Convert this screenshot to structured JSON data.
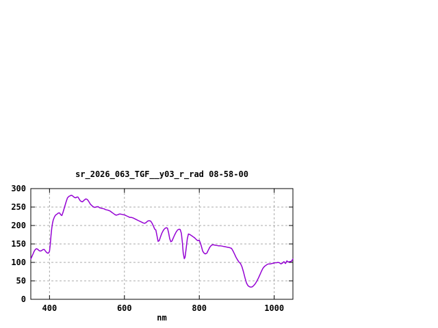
{
  "window": {
    "background_color": "#ffffff"
  },
  "chart_data": {
    "type": "line",
    "title": "sr_2026_063_TGF__y03_r_rad 08-58-00",
    "xlabel": "nm",
    "ylabel": "",
    "xlim": [
      350,
      1050
    ],
    "ylim": [
      0,
      300
    ],
    "xticks": [
      400,
      600,
      800,
      1000
    ],
    "yticks": [
      0,
      50,
      100,
      150,
      200,
      250,
      300
    ],
    "grid": "dashed major gridlines on",
    "legend_position": "none",
    "line_color": "#9400D3",
    "grid_color": "#a8a8a8",
    "frame_color": "#000000",
    "series": [
      {
        "points": [
          [
            350,
            109
          ],
          [
            353,
            116
          ],
          [
            356,
            123
          ],
          [
            359,
            130
          ],
          [
            362,
            135
          ],
          [
            365,
            137
          ],
          [
            368,
            136
          ],
          [
            371,
            133
          ],
          [
            374,
            131
          ],
          [
            377,
            131
          ],
          [
            380,
            133
          ],
          [
            383,
            135
          ],
          [
            386,
            135
          ],
          [
            389,
            131
          ],
          [
            392,
            127
          ],
          [
            395,
            125
          ],
          [
            398,
            126
          ],
          [
            400,
            131
          ],
          [
            402,
            150
          ],
          [
            404,
            172
          ],
          [
            406,
            192
          ],
          [
            408,
            206
          ],
          [
            410,
            215
          ],
          [
            413,
            223
          ],
          [
            416,
            228
          ],
          [
            420,
            231
          ],
          [
            424,
            234
          ],
          [
            427,
            234
          ],
          [
            430,
            229
          ],
          [
            433,
            227
          ],
          [
            436,
            236
          ],
          [
            440,
            249
          ],
          [
            444,
            263
          ],
          [
            448,
            275
          ],
          [
            452,
            279
          ],
          [
            456,
            281
          ],
          [
            458,
            282
          ],
          [
            461,
            281
          ],
          [
            464,
            278
          ],
          [
            467,
            276
          ],
          [
            470,
            275
          ],
          [
            473,
            277
          ],
          [
            476,
            277
          ],
          [
            479,
            272
          ],
          [
            482,
            267
          ],
          [
            485,
            265
          ],
          [
            488,
            264
          ],
          [
            491,
            267
          ],
          [
            494,
            270
          ],
          [
            497,
            272
          ],
          [
            500,
            271
          ],
          [
            503,
            268
          ],
          [
            506,
            263
          ],
          [
            509,
            258
          ],
          [
            512,
            255
          ],
          [
            515,
            252
          ],
          [
            518,
            250
          ],
          [
            521,
            249
          ],
          [
            524,
            250
          ],
          [
            527,
            251
          ],
          [
            530,
            251
          ],
          [
            534,
            248
          ],
          [
            538,
            247
          ],
          [
            542,
            246
          ],
          [
            546,
            245
          ],
          [
            550,
            243
          ],
          [
            554,
            242
          ],
          [
            558,
            241
          ],
          [
            562,
            239
          ],
          [
            566,
            236
          ],
          [
            570,
            233
          ],
          [
            574,
            230
          ],
          [
            578,
            228
          ],
          [
            582,
            229
          ],
          [
            586,
            231
          ],
          [
            590,
            231
          ],
          [
            594,
            230
          ],
          [
            598,
            229
          ],
          [
            602,
            228
          ],
          [
            606,
            226
          ],
          [
            610,
            224
          ],
          [
            614,
            222
          ],
          [
            618,
            222
          ],
          [
            622,
            221
          ],
          [
            626,
            219
          ],
          [
            630,
            217
          ],
          [
            634,
            215
          ],
          [
            638,
            213
          ],
          [
            642,
            211
          ],
          [
            646,
            209
          ],
          [
            650,
            207
          ],
          [
            654,
            206
          ],
          [
            658,
            208
          ],
          [
            662,
            212
          ],
          [
            666,
            213
          ],
          [
            670,
            212
          ],
          [
            674,
            206
          ],
          [
            678,
            197
          ],
          [
            681,
            190
          ],
          [
            684,
            188
          ],
          [
            687,
            172
          ],
          [
            690,
            157
          ],
          [
            693,
            159
          ],
          [
            696,
            168
          ],
          [
            700,
            179
          ],
          [
            704,
            187
          ],
          [
            708,
            192
          ],
          [
            712,
            194
          ],
          [
            715,
            193
          ],
          [
            718,
            181
          ],
          [
            721,
            164
          ],
          [
            724,
            156
          ],
          [
            727,
            158
          ],
          [
            730,
            165
          ],
          [
            734,
            174
          ],
          [
            738,
            182
          ],
          [
            742,
            188
          ],
          [
            746,
            190
          ],
          [
            749,
            189
          ],
          [
            752,
            179
          ],
          [
            755,
            152
          ],
          [
            757,
            126
          ],
          [
            760,
            110
          ],
          [
            762,
            114
          ],
          [
            765,
            139
          ],
          [
            768,
            164
          ],
          [
            771,
            177
          ],
          [
            774,
            176
          ],
          [
            777,
            174
          ],
          [
            780,
            172
          ],
          [
            784,
            169
          ],
          [
            787,
            167
          ],
          [
            790,
            164
          ],
          [
            793,
            161
          ],
          [
            796,
            159
          ],
          [
            800,
            160
          ],
          [
            803,
            152
          ],
          [
            806,
            142
          ],
          [
            809,
            131
          ],
          [
            812,
            126
          ],
          [
            816,
            123
          ],
          [
            820,
            125
          ],
          [
            824,
            133
          ],
          [
            828,
            141
          ],
          [
            832,
            146
          ],
          [
            836,
            148
          ],
          [
            841,
            147
          ],
          [
            846,
            146
          ],
          [
            851,
            145
          ],
          [
            856,
            145
          ],
          [
            861,
            144
          ],
          [
            866,
            143
          ],
          [
            871,
            142
          ],
          [
            876,
            141
          ],
          [
            881,
            140
          ],
          [
            886,
            138
          ],
          [
            890,
            131
          ],
          [
            894,
            123
          ],
          [
            898,
            114
          ],
          [
            902,
            107
          ],
          [
            906,
            101
          ],
          [
            910,
            97
          ],
          [
            914,
            88
          ],
          [
            918,
            74
          ],
          [
            922,
            58
          ],
          [
            926,
            44
          ],
          [
            930,
            37
          ],
          [
            934,
            34
          ],
          [
            938,
            33
          ],
          [
            942,
            34
          ],
          [
            946,
            38
          ],
          [
            950,
            43
          ],
          [
            954,
            50
          ],
          [
            958,
            58
          ],
          [
            962,
            67
          ],
          [
            966,
            76
          ],
          [
            970,
            84
          ],
          [
            974,
            89
          ],
          [
            978,
            92
          ],
          [
            982,
            95
          ],
          [
            986,
            96
          ],
          [
            990,
            96
          ],
          [
            994,
            97
          ],
          [
            998,
            98
          ],
          [
            1002,
            99
          ],
          [
            1006,
            99
          ],
          [
            1010,
            100
          ],
          [
            1014,
            99
          ],
          [
            1018,
            96
          ],
          [
            1022,
            98
          ],
          [
            1026,
            102
          ],
          [
            1030,
            97
          ],
          [
            1034,
            104
          ],
          [
            1038,
            101
          ],
          [
            1042,
            102
          ],
          [
            1046,
            103
          ],
          [
            1050,
            109
          ]
        ]
      }
    ]
  }
}
